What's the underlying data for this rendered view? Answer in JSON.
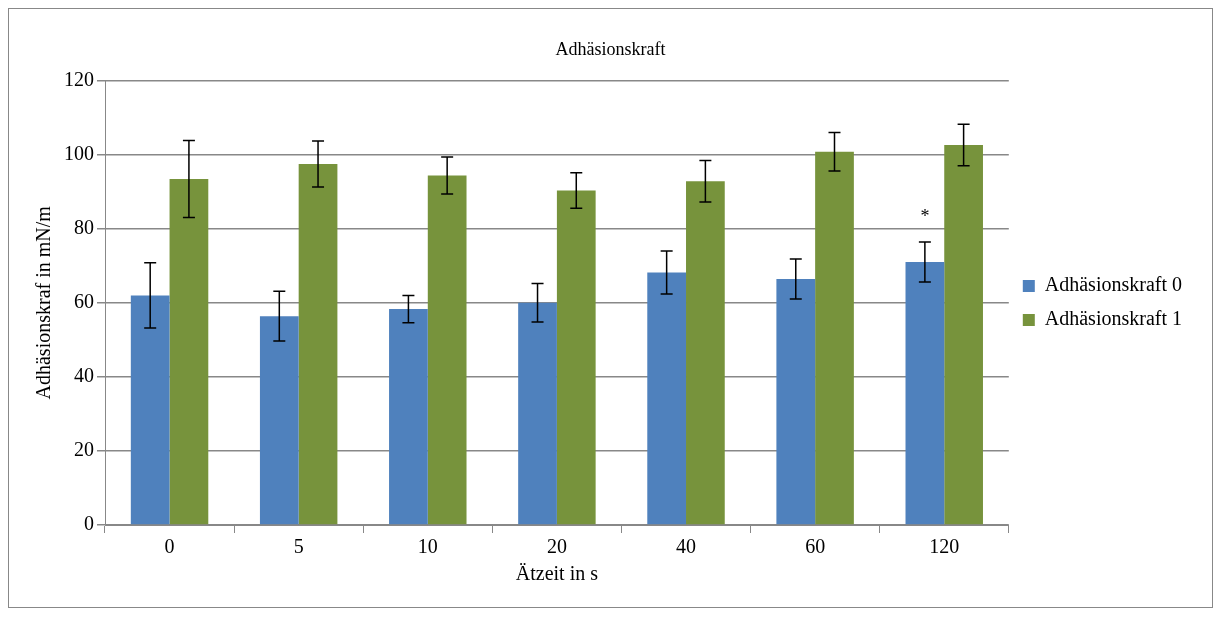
{
  "chart_data": {
    "type": "bar",
    "title": "Adhäsionskraft",
    "xlabel": "Ätzeit in s",
    "ylabel": "Adhäsionskraf in mN/m",
    "categories": [
      "0",
      "5",
      "10",
      "20",
      "40",
      "60",
      "120"
    ],
    "series": [
      {
        "name": "Adhäsionskraft 0",
        "color": "#4f81bd",
        "values": [
          62,
          56.4,
          58.3,
          60,
          68.2,
          66.4,
          71
        ],
        "errors": [
          8.8,
          6.7,
          3.7,
          5.2,
          5.8,
          5.4,
          5.4
        ]
      },
      {
        "name": "Adhäsionskraft 1",
        "color": "#77933c",
        "values": [
          93.4,
          97.5,
          94.4,
          90.3,
          92.8,
          100.8,
          102.6
        ],
        "errors": [
          10.4,
          6.2,
          5,
          4.8,
          5.6,
          5.2,
          5.6
        ]
      }
    ],
    "ylim": [
      0,
      120
    ],
    "yticks": [
      0,
      20,
      40,
      60,
      80,
      100,
      120
    ],
    "grid": "y",
    "legend": "right",
    "annotations": [
      {
        "text": "*",
        "x": "120",
        "y": 83
      }
    ]
  }
}
